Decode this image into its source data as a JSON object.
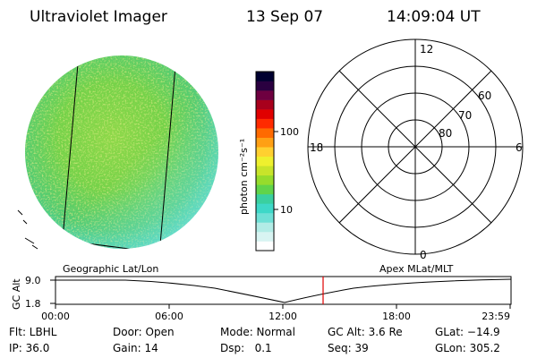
{
  "header": {
    "instrument": "Ultraviolet Imager",
    "date": "13 Sep 07",
    "time": "14:09:04 UT"
  },
  "colorbar": {
    "unit_label": "photon cm⁻²s⁻¹",
    "ticks": [
      "100",
      "10"
    ],
    "colors": [
      "#ffffff",
      "#d8f4f2",
      "#b2ece6",
      "#6fe0d6",
      "#3ed8c8",
      "#3ad0a0",
      "#60d44a",
      "#96dc2c",
      "#c8e42a",
      "#eef02e",
      "#ffd030",
      "#ffa014",
      "#ff6a00",
      "#ff2a00",
      "#e00000",
      "#a8001c",
      "#6e0040",
      "#2a0040",
      "#000030"
    ]
  },
  "polar": {
    "hour_labels": {
      "top": "12",
      "left": "18",
      "right": "6",
      "bottom": "0"
    },
    "lat_labels": [
      "80",
      "70",
      "60"
    ]
  },
  "panels": {
    "left_caption": "Geographic Lat/Lon",
    "right_caption": "Apex MLat/MLT"
  },
  "orbit_plot": {
    "ylabel": "GC Alt",
    "yticks": [
      "9.0",
      "1.8"
    ],
    "xticks": [
      "00:00",
      "06:00",
      "12:00",
      "18:00",
      "23:59"
    ],
    "current_marker_color": "#e00000"
  },
  "info": {
    "col1": [
      "Flt: LBHL",
      "IP: 36.0"
    ],
    "col2": [
      "Door: Open",
      "Gain: 14"
    ],
    "col3": [
      "Mode: Normal",
      "Dsp:   0.1"
    ],
    "col4": [
      "GC Alt: 3.6 Re",
      "Seq: 39"
    ],
    "col5": [
      "GLat: −14.9",
      "GLon: 305.2"
    ]
  }
}
